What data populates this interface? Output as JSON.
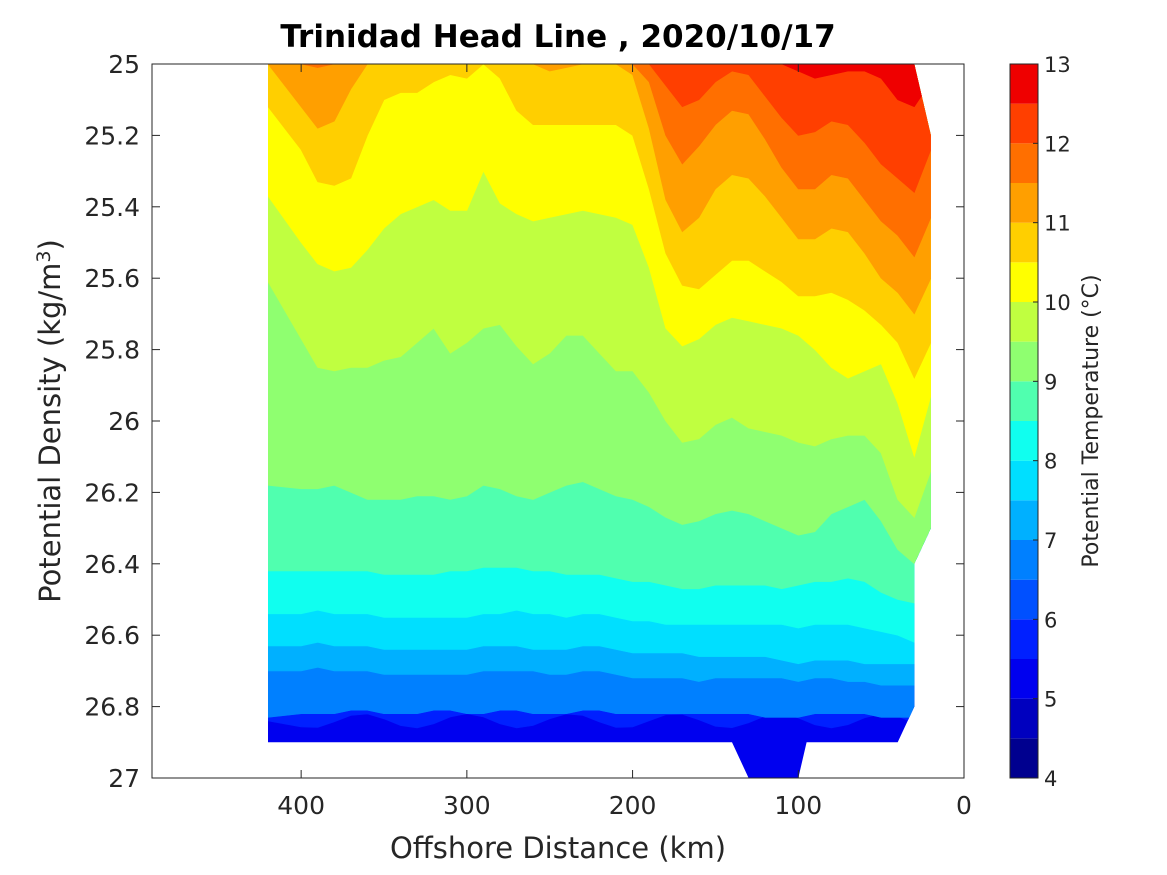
{
  "chart_data": {
    "type": "heatmap",
    "title": "Trinidad Head Line , 2020/10/17",
    "xlabel": "Offshore Distance (km)",
    "ylabel": "Potential Density (kg/m",
    "ylabel_sup": "3",
    "ylabel_close": ")",
    "colorbar_label": "Potential Temperature (°C)",
    "x_reversed": true,
    "xlim": [
      0,
      490
    ],
    "ylim": [
      25,
      27
    ],
    "y_reversed": true,
    "x_ticks": [
      400,
      300,
      200,
      100,
      0
    ],
    "x_tick_labels": [
      "400",
      "300",
      "200",
      "100",
      "0"
    ],
    "y_ticks": [
      25,
      25.2,
      25.4,
      25.6,
      25.8,
      26,
      26.2,
      26.4,
      26.6,
      26.8,
      27
    ],
    "y_tick_labels": [
      "25",
      "25.2",
      "25.4",
      "25.6",
      "25.8",
      "26",
      "26.2",
      "26.4",
      "26.6",
      "26.8",
      "27"
    ],
    "colorbar_range": [
      4,
      13
    ],
    "colorbar_ticks": [
      4,
      5,
      6,
      7,
      8,
      9,
      10,
      11,
      12,
      13
    ],
    "colorbar_tick_labels": [
      "4",
      "5",
      "6",
      "7",
      "8",
      "9",
      "10",
      "11",
      "12",
      "13"
    ],
    "contour_levels": [
      4,
      4.5,
      5,
      5.5,
      6,
      6.5,
      7,
      7.5,
      8,
      8.5,
      9,
      9.5,
      10,
      10.5,
      11,
      11.5,
      12,
      12.5,
      13
    ],
    "level_colors": [
      "#00008f",
      "#0000bf",
      "#0000ef",
      "#0020ff",
      "#0050ff",
      "#0080ff",
      "#00b0ff",
      "#00dfff",
      "#10ffef",
      "#50ffaf",
      "#8fff70",
      "#c0ff40",
      "#ffff00",
      "#ffcf00",
      "#ff9f00",
      "#ff6f00",
      "#ff3f00",
      "#ef0000",
      "#bf0000"
    ],
    "stations_km": [
      420,
      400,
      390,
      380,
      370,
      360,
      350,
      340,
      330,
      320,
      310,
      300,
      290,
      280,
      270,
      260,
      250,
      240,
      230,
      220,
      210,
      200,
      190,
      180,
      170,
      160,
      150,
      140,
      130,
      120,
      110,
      100,
      90,
      80,
      70,
      60,
      50,
      40,
      30,
      20
    ],
    "isotherms_sigma": [
      {
        "temperature": 6.5,
        "sigma": [
          26.83,
          26.82,
          26.82,
          26.82,
          26.81,
          26.81,
          26.82,
          26.82,
          26.82,
          26.81,
          26.81,
          26.82,
          26.82,
          26.81,
          26.81,
          26.82,
          26.82,
          26.82,
          26.81,
          26.81,
          26.82,
          26.82,
          26.82,
          26.82,
          26.82,
          26.82,
          26.82,
          26.82,
          26.82,
          26.83,
          26.83,
          26.83,
          26.82,
          26.82,
          26.82,
          26.82,
          26.83,
          26.83,
          26.83,
          26.83
        ]
      },
      {
        "temperature": 7.0,
        "sigma": [
          26.7,
          26.7,
          26.69,
          26.7,
          26.7,
          26.7,
          26.71,
          26.71,
          26.71,
          26.71,
          26.71,
          26.71,
          26.7,
          26.7,
          26.7,
          26.7,
          26.71,
          26.71,
          26.7,
          26.7,
          26.71,
          26.72,
          26.72,
          26.72,
          26.72,
          26.73,
          26.72,
          26.72,
          26.72,
          26.72,
          26.72,
          26.73,
          26.72,
          26.72,
          26.73,
          26.73,
          26.74,
          26.74,
          26.74,
          26.74
        ]
      },
      {
        "temperature": 7.5,
        "sigma": [
          26.63,
          26.63,
          26.62,
          26.63,
          26.63,
          26.63,
          26.64,
          26.64,
          26.64,
          26.64,
          26.64,
          26.64,
          26.63,
          26.63,
          26.63,
          26.64,
          26.64,
          26.64,
          26.63,
          26.63,
          26.64,
          26.65,
          26.65,
          26.65,
          26.65,
          26.66,
          26.66,
          26.66,
          26.66,
          26.66,
          26.67,
          26.68,
          26.67,
          26.67,
          26.67,
          26.68,
          26.68,
          26.68,
          26.68,
          26.68
        ]
      },
      {
        "temperature": 8.0,
        "sigma": [
          26.54,
          26.54,
          26.53,
          26.54,
          26.54,
          26.54,
          26.55,
          26.55,
          26.55,
          26.55,
          26.55,
          26.55,
          26.54,
          26.54,
          26.53,
          26.54,
          26.54,
          26.55,
          26.54,
          26.54,
          26.55,
          26.56,
          26.56,
          26.57,
          26.57,
          26.57,
          26.57,
          26.57,
          26.57,
          26.57,
          26.57,
          26.58,
          26.57,
          26.57,
          26.57,
          26.58,
          26.59,
          26.6,
          26.62,
          26.62
        ]
      },
      {
        "temperature": 8.5,
        "sigma": [
          26.42,
          26.42,
          26.42,
          26.42,
          26.42,
          26.42,
          26.43,
          26.43,
          26.43,
          26.43,
          26.42,
          26.42,
          26.41,
          26.41,
          26.41,
          26.42,
          26.42,
          26.43,
          26.43,
          26.43,
          26.44,
          26.45,
          26.45,
          26.46,
          26.47,
          26.47,
          26.46,
          26.46,
          26.46,
          26.46,
          26.47,
          26.46,
          26.45,
          26.45,
          26.44,
          26.45,
          26.48,
          26.5,
          26.51,
          26.5
        ]
      },
      {
        "temperature": 9.0,
        "sigma": [
          26.18,
          26.19,
          26.19,
          26.18,
          26.2,
          26.22,
          26.22,
          26.22,
          26.21,
          26.21,
          26.22,
          26.21,
          26.18,
          26.19,
          26.21,
          26.22,
          26.2,
          26.18,
          26.17,
          26.19,
          26.21,
          26.22,
          26.24,
          26.27,
          26.29,
          26.28,
          26.26,
          26.25,
          26.26,
          26.28,
          26.3,
          26.32,
          26.31,
          26.26,
          26.24,
          26.22,
          26.28,
          26.36,
          26.4,
          26.3
        ]
      },
      {
        "temperature": 9.5,
        "sigma": [
          25.61,
          25.77,
          25.85,
          25.86,
          25.85,
          25.85,
          25.83,
          25.82,
          25.78,
          25.74,
          25.81,
          25.78,
          25.74,
          25.73,
          25.79,
          25.84,
          25.81,
          25.76,
          25.76,
          25.81,
          25.86,
          25.86,
          25.92,
          26.0,
          26.06,
          26.05,
          26.01,
          25.99,
          26.02,
          26.03,
          26.04,
          26.06,
          26.07,
          26.05,
          26.04,
          26.04,
          26.09,
          26.22,
          26.27,
          26.14
        ]
      },
      {
        "temperature": 10.0,
        "sigma": [
          25.37,
          25.5,
          25.56,
          25.58,
          25.57,
          25.52,
          25.46,
          25.42,
          25.4,
          25.38,
          25.41,
          25.41,
          25.3,
          25.39,
          25.42,
          25.44,
          25.43,
          25.42,
          25.41,
          25.42,
          25.43,
          25.45,
          25.57,
          25.74,
          25.79,
          25.77,
          25.73,
          25.71,
          25.72,
          25.73,
          25.74,
          25.76,
          25.8,
          25.85,
          25.88,
          25.86,
          25.84,
          25.95,
          26.1,
          25.93
        ]
      },
      {
        "temperature": 10.5,
        "sigma": [
          25.12,
          25.24,
          25.33,
          25.34,
          25.32,
          25.2,
          25.1,
          25.08,
          25.08,
          25.05,
          25.03,
          25.04,
          25.0,
          25.04,
          25.13,
          25.17,
          25.17,
          25.17,
          25.17,
          25.17,
          25.17,
          25.2,
          25.35,
          25.53,
          25.62,
          25.63,
          25.59,
          25.55,
          25.55,
          25.58,
          25.61,
          25.65,
          25.65,
          25.64,
          25.66,
          25.69,
          25.73,
          25.78,
          25.88,
          25.78
        ]
      },
      {
        "temperature": 11.0,
        "sigma": [
          25.0,
          25.12,
          25.18,
          25.16,
          25.07,
          25.0,
          25.0,
          25.0,
          25.0,
          25.0,
          25.0,
          25.0,
          25.0,
          25.0,
          25.0,
          25.0,
          25.02,
          25.01,
          25.0,
          25.0,
          25.0,
          25.03,
          25.18,
          25.38,
          25.47,
          25.43,
          25.35,
          25.31,
          25.32,
          25.37,
          25.43,
          25.49,
          25.49,
          25.46,
          25.47,
          25.53,
          25.6,
          25.64,
          25.7,
          25.6
        ]
      },
      {
        "temperature": 11.5,
        "sigma": [
          25.0,
          25.0,
          25.01,
          25.0,
          25.0,
          25.0,
          25.0,
          25.0,
          25.0,
          25.0,
          25.0,
          25.0,
          25.0,
          25.0,
          25.0,
          25.0,
          25.0,
          25.0,
          25.0,
          25.0,
          25.0,
          25.0,
          25.05,
          25.2,
          25.28,
          25.23,
          25.17,
          25.13,
          25.14,
          25.21,
          25.29,
          25.35,
          25.35,
          25.31,
          25.32,
          25.38,
          25.44,
          25.48,
          25.54,
          25.43
        ]
      },
      {
        "temperature": 12.0,
        "sigma": [
          25.0,
          25.0,
          25.0,
          25.0,
          25.0,
          25.0,
          25.0,
          25.0,
          25.0,
          25.0,
          25.0,
          25.0,
          25.0,
          25.0,
          25.0,
          25.0,
          25.0,
          25.0,
          25.0,
          25.0,
          25.0,
          25.0,
          25.0,
          25.06,
          25.12,
          25.1,
          25.05,
          25.02,
          25.03,
          25.09,
          25.15,
          25.2,
          25.19,
          25.16,
          25.17,
          25.22,
          25.28,
          25.32,
          25.36,
          25.24
        ]
      },
      {
        "temperature": 12.5,
        "sigma": [
          25.0,
          25.0,
          25.0,
          25.0,
          25.0,
          25.0,
          25.0,
          25.0,
          25.0,
          25.0,
          25.0,
          25.0,
          25.0,
          25.0,
          25.0,
          25.0,
          25.0,
          25.0,
          25.0,
          25.0,
          25.0,
          25.0,
          25.0,
          25.0,
          25.0,
          25.0,
          25.0,
          25.0,
          25.0,
          25.0,
          25.0,
          25.02,
          25.04,
          25.03,
          25.02,
          25.02,
          25.04,
          25.1,
          25.12,
          25.05
        ]
      }
    ]
  }
}
